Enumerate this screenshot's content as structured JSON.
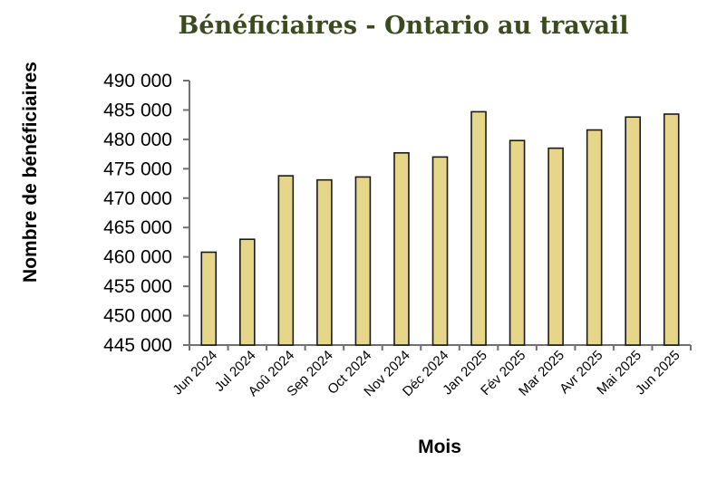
{
  "colors": {
    "bar_fill": "#e5d689",
    "bar_stroke": "#1a1a1a",
    "title": "#3b4a1f",
    "axis": "#707070"
  },
  "chart_data": {
    "type": "bar",
    "title": "Bénéficiaires - Ontario au travail",
    "xlabel": "Mois",
    "ylabel": "Nombre de bénéficiaires",
    "ylim": [
      445000,
      490000
    ],
    "yticks": [
      445000,
      450000,
      455000,
      460000,
      465000,
      470000,
      475000,
      480000,
      485000,
      490000
    ],
    "ytick_labels": [
      "445 000",
      "450 000",
      "455 000",
      "460 000",
      "465 000",
      "470 000",
      "475 000",
      "480 000",
      "485 000",
      "490 000"
    ],
    "categories": [
      "Jun 2024",
      "Jul 2024",
      "Aoû 2024",
      "Sep 2024",
      "Oct 2024",
      "Nov 2024",
      "Déc 2024",
      "Jan 2025",
      "Fév 2025",
      "Mar 2025",
      "Avr 2025",
      "Mai 2025",
      "Jun 2025"
    ],
    "values": [
      460800,
      463000,
      473800,
      473100,
      473600,
      477700,
      477000,
      484700,
      479800,
      478500,
      481600,
      483800,
      484300
    ],
    "grid": false,
    "legend": "none"
  }
}
